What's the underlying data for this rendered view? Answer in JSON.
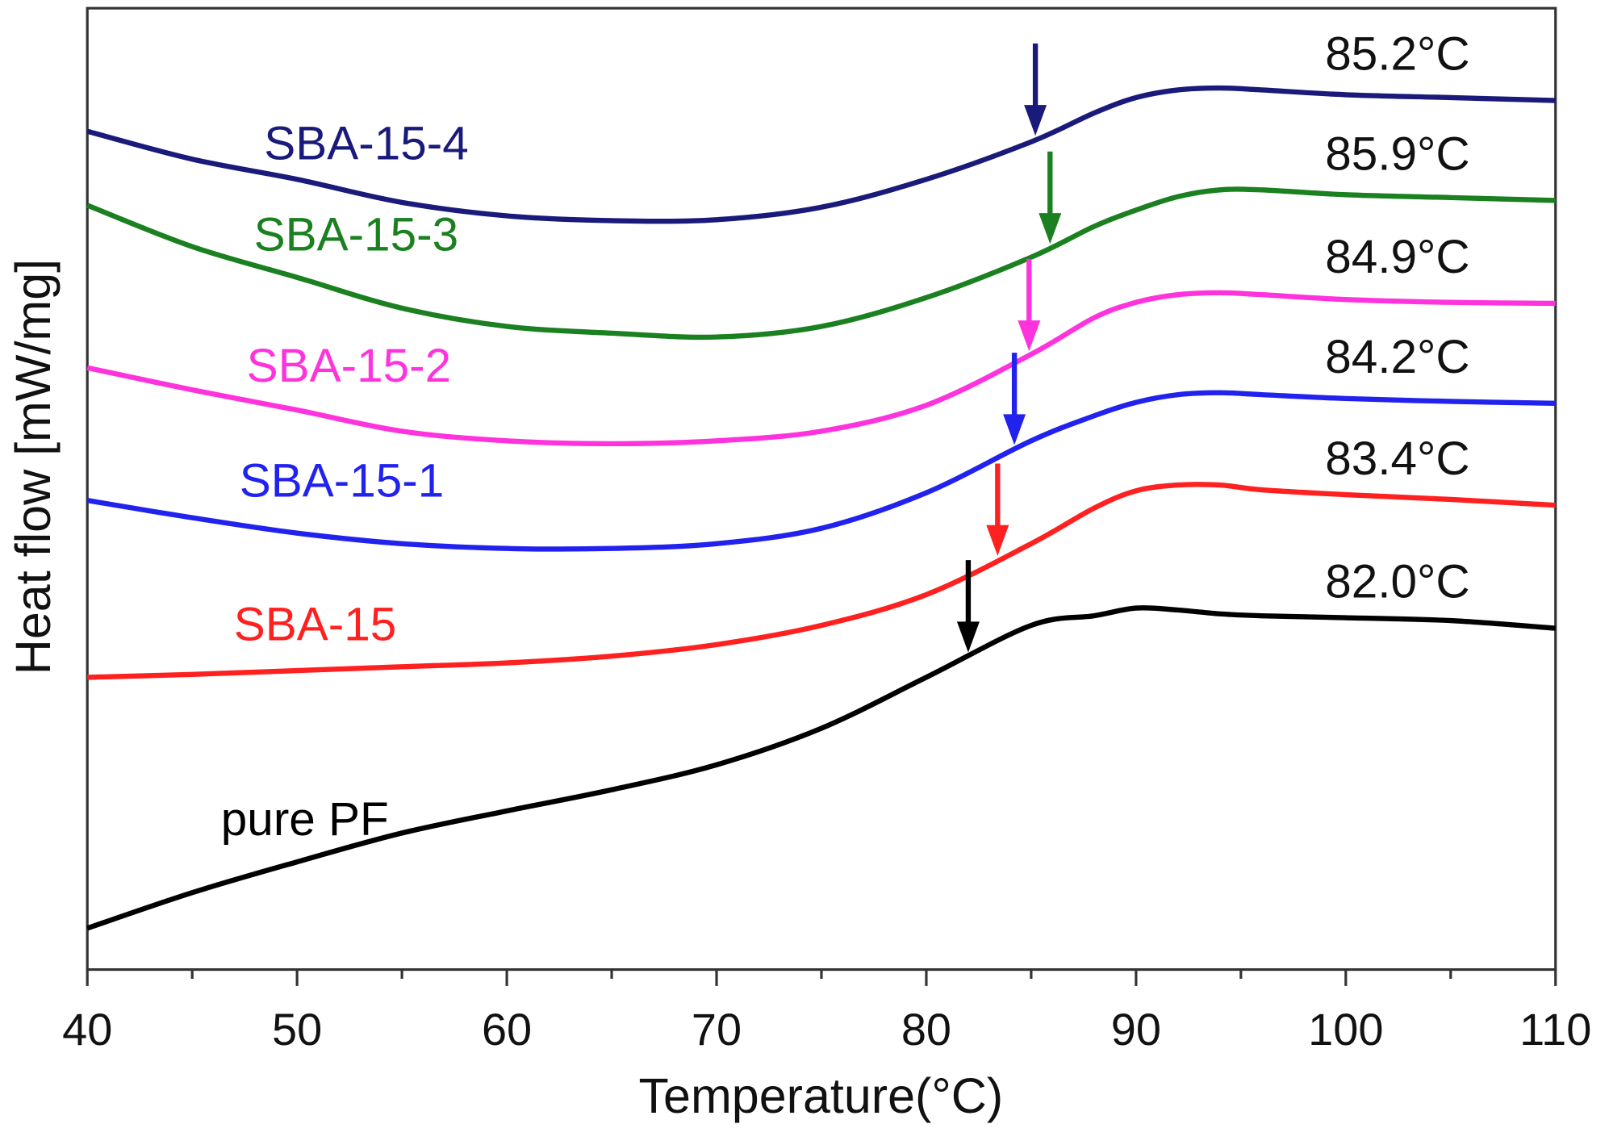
{
  "chart_data": {
    "type": "line",
    "x_label": "Temperature(°C)",
    "y_label": "Heat flow [mW/mg]",
    "x": [
      40,
      45,
      50,
      55,
      60,
      65,
      70,
      75,
      80,
      85,
      88,
      90,
      92,
      94,
      96,
      100,
      105,
      110
    ],
    "xlim": [
      40,
      110
    ],
    "xticks": [
      40,
      50,
      60,
      70,
      80,
      90,
      100,
      110
    ],
    "xminorticks": [
      45,
      55,
      65,
      75,
      85,
      95,
      105
    ],
    "ylim": [
      0,
      100
    ],
    "series": [
      {
        "name": "SBA-15-4",
        "color": "#1a1a7a",
        "tg": 85.2,
        "tg_label": "85.2°C",
        "values": [
          87.2,
          84.3,
          82.2,
          79.8,
          78.4,
          77.9,
          78.0,
          79.3,
          82.2,
          86.1,
          89.1,
          90.7,
          91.5,
          91.7,
          91.5,
          91.0,
          90.7,
          90.4
        ]
      },
      {
        "name": "SBA-15-3",
        "color": "#1a8020",
        "tg": 85.9,
        "tg_label": "85.9°C",
        "values": [
          79.5,
          75.2,
          72.0,
          68.8,
          66.9,
          66.2,
          65.8,
          66.9,
          69.9,
          74.1,
          77.3,
          79.0,
          80.4,
          81.1,
          81.1,
          80.6,
          80.3,
          80.0
        ]
      },
      {
        "name": "SBA-15-2",
        "color": "#ff33dd",
        "tg": 84.9,
        "tg_label": "84.9°C",
        "values": [
          62.6,
          60.3,
          58.2,
          56.0,
          55.0,
          54.7,
          55.0,
          56.0,
          58.7,
          64.0,
          67.8,
          69.4,
          70.2,
          70.4,
          70.2,
          69.7,
          69.4,
          69.3
        ]
      },
      {
        "name": "SBA-15-1",
        "color": "#2222ee",
        "tg": 84.2,
        "tg_label": "84.2°C",
        "values": [
          48.8,
          47.0,
          45.4,
          44.3,
          43.8,
          43.8,
          44.3,
          45.9,
          49.6,
          55.0,
          57.6,
          59.0,
          59.8,
          60.0,
          59.8,
          59.4,
          59.1,
          58.9
        ]
      },
      {
        "name": "SBA-15",
        "color": "#ff2020",
        "tg": 83.4,
        "tg_label": "83.4°C",
        "values": [
          30.4,
          30.7,
          31.1,
          31.5,
          31.9,
          32.6,
          33.8,
          35.8,
          39.0,
          44.3,
          48.0,
          49.8,
          50.4,
          50.4,
          49.9,
          49.4,
          48.9,
          48.3
        ]
      },
      {
        "name": "pure PF",
        "color": "#000000",
        "tg": 82.0,
        "tg_label": "82.0°C",
        "values": [
          4.3,
          8.0,
          11.2,
          14.2,
          16.5,
          18.7,
          21.3,
          25.1,
          30.4,
          35.8,
          36.8,
          37.6,
          37.4,
          37.0,
          36.8,
          36.6,
          36.3,
          35.5
        ]
      }
    ]
  }
}
